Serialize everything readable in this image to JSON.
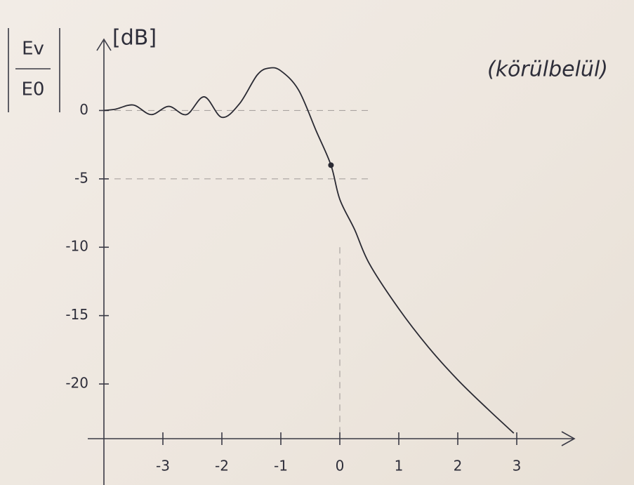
{
  "chart_data": {
    "type": "line",
    "y_label": "[dB]",
    "y_label_fraction": {
      "numerator": "Ev",
      "denominator": "E0"
    },
    "annotation": "(körülbelül)",
    "xlim": [
      -4,
      4
    ],
    "ylim": [
      -24,
      5
    ],
    "xticks": [
      -3,
      -2,
      -1,
      0,
      1,
      2,
      3
    ],
    "yticks": [
      0,
      -5,
      -10,
      -15,
      -20
    ],
    "hlines": [
      0,
      -5
    ],
    "vlines": [
      0
    ],
    "highlight": {
      "x": -0.15,
      "y": -4
    },
    "color": "#2a2a33",
    "x": [
      -4,
      -3.8,
      -3.5,
      -3.2,
      -2.9,
      -2.6,
      -2.3,
      -2.0,
      -1.7,
      -1.4,
      -1.2,
      -1.0,
      -0.7,
      -0.4,
      -0.15,
      0,
      0.25,
      0.5,
      1.0,
      1.5,
      2.0,
      2.5,
      2.95
    ],
    "values": [
      0,
      0.1,
      0.4,
      -0.3,
      0.3,
      -0.3,
      1.0,
      -0.5,
      0.5,
      2.6,
      3.1,
      2.9,
      1.5,
      -1.5,
      -4.0,
      -6.5,
      -8.7,
      -11.2,
      -14.5,
      -17.3,
      -19.7,
      -21.8,
      -23.6
    ]
  }
}
